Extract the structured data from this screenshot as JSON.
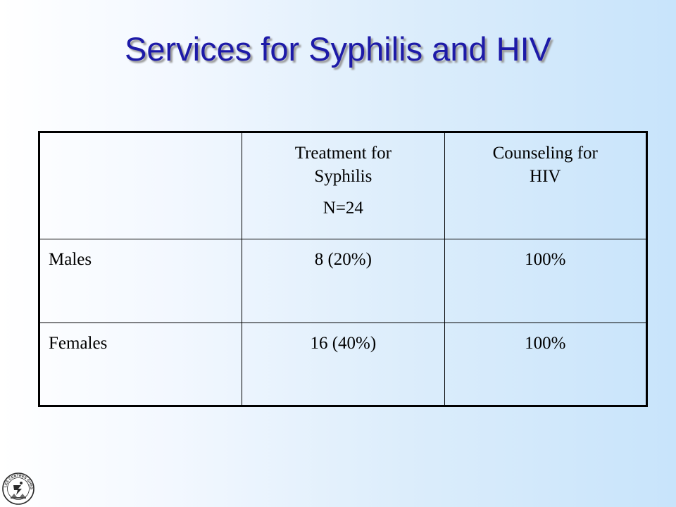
{
  "slide": {
    "title": "Services for Syphilis and HIV"
  },
  "table": {
    "headers": [
      {
        "lines": []
      },
      {
        "lines": [
          "Treatment for",
          "Syphilis"
        ],
        "sub": "N=24"
      },
      {
        "lines": [
          "Counseling for",
          "HIV"
        ]
      }
    ],
    "rows": [
      {
        "label": "Males",
        "treatment": "8 (20%)",
        "counseling": "100%"
      },
      {
        "label": "Females",
        "treatment": "16 (40%)",
        "counseling": "100%"
      }
    ]
  },
  "logo": {
    "icon": "les-centres-ghesko-logo-icon",
    "text": "LES CENTRES GHESKIO"
  },
  "colors": {
    "title": "#1d1aa8",
    "background_left": "#ffffff",
    "background_right": "#c8e4fb",
    "table_border": "#000000"
  }
}
